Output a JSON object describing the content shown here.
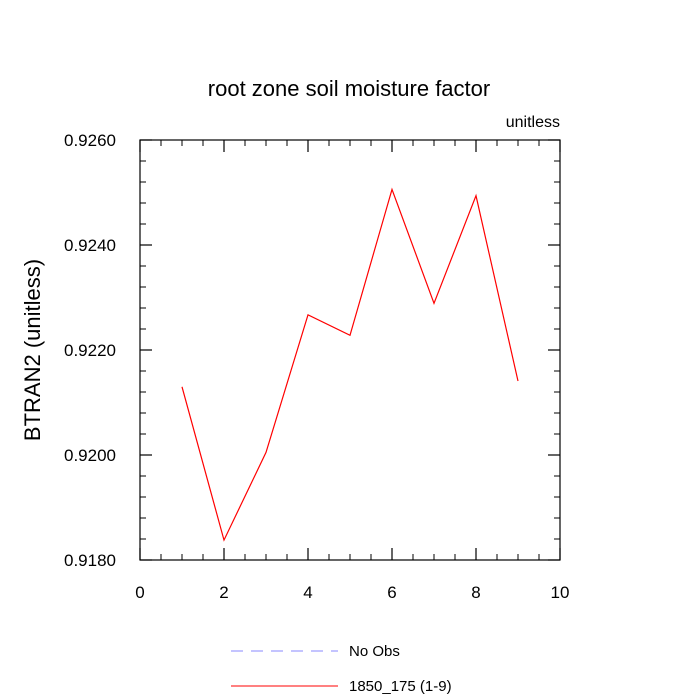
{
  "chart_data": {
    "type": "line",
    "title": "root zone soil moisture factor",
    "units_label": "unitless",
    "xlabel": "",
    "ylabel": "BTRAN2  (unitless)",
    "xlim": [
      0,
      10
    ],
    "ylim": [
      0.918,
      0.926
    ],
    "x_ticks": [
      0,
      2,
      4,
      6,
      8,
      10
    ],
    "x_tick_labels": [
      "0",
      "2",
      "4",
      "6",
      "8",
      "10"
    ],
    "y_ticks": [
      0.918,
      0.92,
      0.922,
      0.924,
      0.926
    ],
    "y_tick_labels": [
      "0.9180",
      "0.9200",
      "0.9220",
      "0.9240",
      "0.9260"
    ],
    "grid": false,
    "legend_position": "bottom",
    "series": [
      {
        "name": "1850_175 (1-9)",
        "color": "#ff0000",
        "style": "solid",
        "x": [
          1,
          2,
          3,
          4,
          5,
          6,
          7,
          8,
          9
        ],
        "values": [
          0.9213,
          0.91838,
          0.92005,
          0.92267,
          0.92228,
          0.92506,
          0.92289,
          0.92494,
          0.92141
        ]
      }
    ],
    "legend": [
      {
        "label": "No Obs",
        "color": "#8888ff",
        "style": "dashed"
      },
      {
        "label": "1850_175 (1-9)",
        "color": "#ff0000",
        "style": "solid"
      }
    ]
  }
}
